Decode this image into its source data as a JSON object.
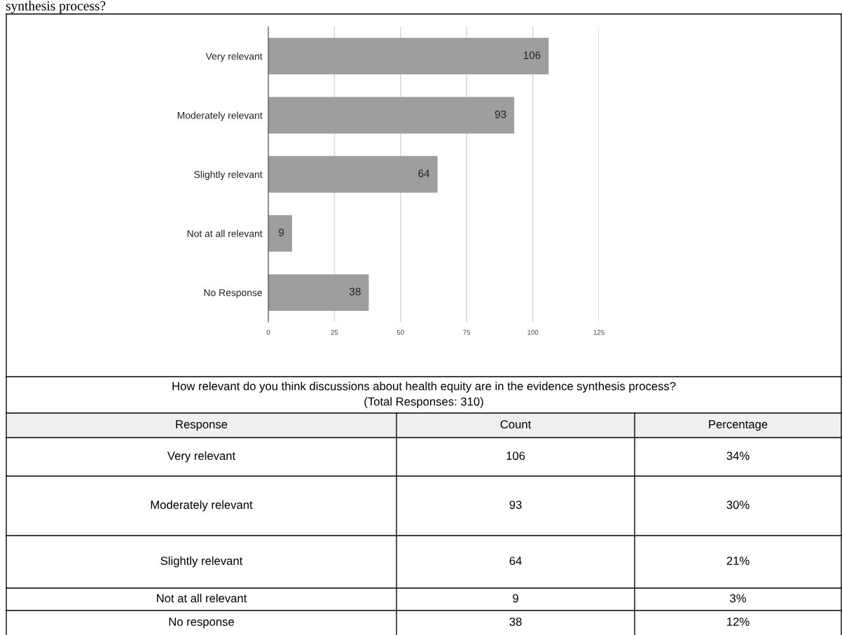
{
  "chart_data": [
    {
      "type": "bar",
      "orientation": "horizontal",
      "categories": [
        "Very relevant",
        "Moderately relevant",
        "Slightly relevant",
        "Not at all relevant",
        "No Response"
      ],
      "values": [
        106,
        93,
        64,
        9,
        38
      ],
      "color": "#9e9e9e",
      "xlim": [
        0,
        125
      ],
      "xticks": [
        0,
        25,
        50,
        75,
        100,
        125
      ],
      "grid": "x",
      "data_labels": true,
      "annotations": [
        "synthesis process?"
      ]
    },
    {
      "type": "other",
      "title": "How relevant do you think discussions about health equity are in the evidence synthesis process?",
      "subtitle": "(Total Responses: 310)",
      "annotations": [
        "Response",
        "Count",
        "Percentage",
        "Very relevant",
        "106",
        "34%",
        "Moderately relevant",
        "93",
        "30%",
        "Slightly relevant",
        "64",
        "21%",
        "Not at all relevant",
        "9",
        "3%",
        "No response",
        "38",
        "12%"
      ]
    }
  ]
}
